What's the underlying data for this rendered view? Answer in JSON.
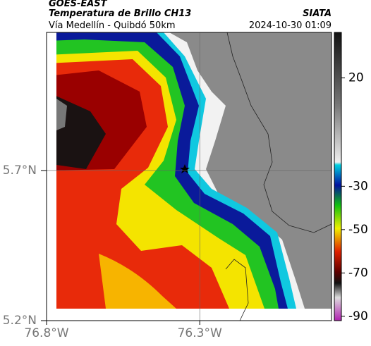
{
  "header": {
    "satellite": "GOES-EAST",
    "product": "Temperatura de Brillo CH13",
    "source": "SIATA",
    "region": "Vía Medellín - Quibdó 50km",
    "timestamp": "2024-10-30 01:09"
  },
  "map": {
    "latlim": [
      5.2,
      6.16
    ],
    "lonlim": [
      -76.8,
      -75.87
    ],
    "lat_ticks": [
      {
        "value": 5.7,
        "label": "5.7°N"
      },
      {
        "value": 5.2,
        "label": "5.2°N"
      }
    ],
    "lon_ticks": [
      {
        "value": -76.8,
        "label": "76.8°W"
      },
      {
        "value": -76.3,
        "label": "76.3°W"
      }
    ],
    "grid": true
  },
  "colorbar": {
    "lim": [
      -92,
      41
    ],
    "ticks": [
      20,
      -30,
      -50,
      -70,
      -90
    ]
  }
}
